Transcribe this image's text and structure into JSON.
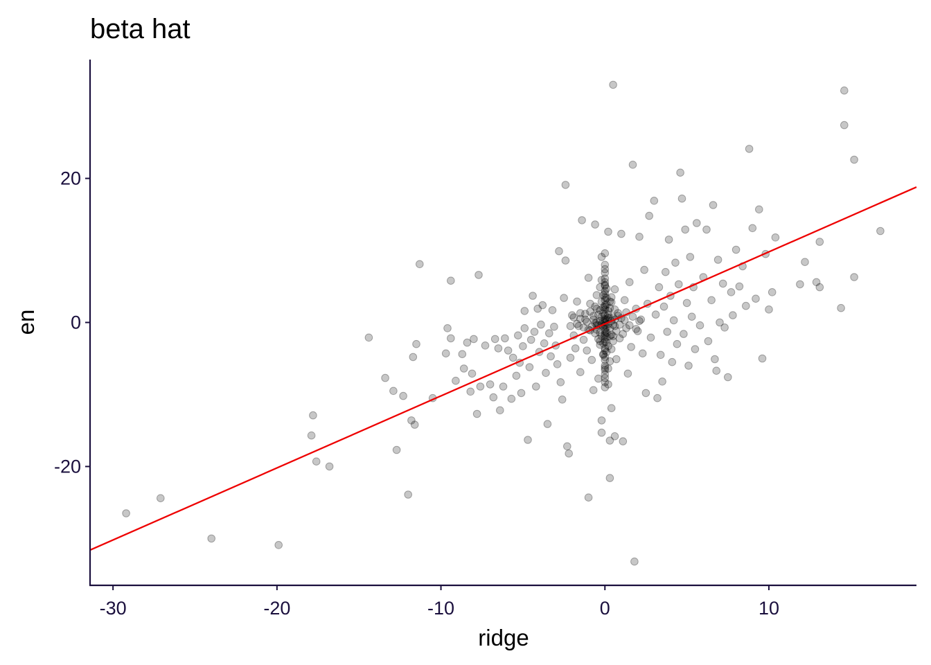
{
  "chart_data": {
    "type": "scatter",
    "title": "beta hat",
    "xlabel": "ridge",
    "ylabel": "en",
    "xlim": [
      -31.4,
      19
    ],
    "ylim": [
      -36.5,
      36.5
    ],
    "x_ticks": [
      -30,
      -20,
      -10,
      0,
      10
    ],
    "x_tick_labels": [
      "-30",
      "-20",
      "-10",
      "0",
      "10"
    ],
    "y_ticks": [
      -20,
      0,
      20
    ],
    "y_tick_labels": [
      "-20",
      "0",
      "20"
    ],
    "grid": false,
    "legend": "none",
    "point_color": "#000000",
    "point_opacity": 0.22,
    "fit_line": {
      "color": "#ee0000",
      "slope": 1.0,
      "intercept": -0.2
    },
    "points": [
      [
        -29.2,
        -26.5
      ],
      [
        -27.1,
        -24.4
      ],
      [
        -24.0,
        -30.0
      ],
      [
        -19.9,
        -30.9
      ],
      [
        -17.9,
        -15.7
      ],
      [
        -17.8,
        -12.9
      ],
      [
        -17.6,
        -19.3
      ],
      [
        -16.8,
        -20.0
      ],
      [
        -14.4,
        -2.1
      ],
      [
        -13.4,
        -7.7
      ],
      [
        -12.9,
        -9.5
      ],
      [
        -12.7,
        -17.7
      ],
      [
        -12.3,
        -10.2
      ],
      [
        -12.0,
        -23.9
      ],
      [
        -11.8,
        -13.6
      ],
      [
        -11.7,
        -4.8
      ],
      [
        -11.6,
        -14.2
      ],
      [
        -11.5,
        -3.0
      ],
      [
        -11.3,
        8.1
      ],
      [
        -10.5,
        -10.5
      ],
      [
        -9.7,
        -4.3
      ],
      [
        -9.6,
        -0.8
      ],
      [
        -9.4,
        5.8
      ],
      [
        -9.4,
        -2.2
      ],
      [
        -9.1,
        -8.1
      ],
      [
        -8.7,
        -4.4
      ],
      [
        -8.6,
        -6.4
      ],
      [
        -8.4,
        -2.8
      ],
      [
        -8.2,
        -9.6
      ],
      [
        -8.1,
        -7.1
      ],
      [
        -8.0,
        -2.3
      ],
      [
        -7.8,
        -12.7
      ],
      [
        -7.7,
        6.6
      ],
      [
        -7.6,
        -8.9
      ],
      [
        -7.3,
        -3.2
      ],
      [
        -7.0,
        -8.6
      ],
      [
        -6.8,
        -10.4
      ],
      [
        -6.7,
        -2.3
      ],
      [
        -6.5,
        -3.6
      ],
      [
        -6.4,
        -12.2
      ],
      [
        -6.2,
        -8.9
      ],
      [
        -6.1,
        -2.2
      ],
      [
        -5.9,
        -3.9
      ],
      [
        -5.7,
        -10.6
      ],
      [
        -5.6,
        -4.9
      ],
      [
        -5.4,
        -7.4
      ],
      [
        -5.3,
        -1.8
      ],
      [
        -5.2,
        -5.6
      ],
      [
        -5.1,
        -9.8
      ],
      [
        -5.0,
        -3.3
      ],
      [
        -4.9,
        -0.8
      ],
      [
        -4.9,
        1.6
      ],
      [
        -4.7,
        -16.3
      ],
      [
        -4.6,
        -6.2
      ],
      [
        -4.5,
        -2.4
      ],
      [
        -4.4,
        3.7
      ],
      [
        -4.3,
        -1.3
      ],
      [
        -4.2,
        -8.9
      ],
      [
        -4.1,
        1.9
      ],
      [
        -4.0,
        -4.1
      ],
      [
        -3.9,
        -0.3
      ],
      [
        -3.8,
        2.4
      ],
      [
        -3.7,
        -2.9
      ],
      [
        -3.6,
        -7.0
      ],
      [
        -3.5,
        -14.1
      ],
      [
        -3.4,
        -1.5
      ],
      [
        -3.3,
        -4.7
      ],
      [
        -3.2,
        1.7
      ],
      [
        -3.1,
        -0.6
      ],
      [
        -3.0,
        -3.2
      ],
      [
        -2.9,
        -5.8
      ],
      [
        -2.8,
        9.9
      ],
      [
        -2.7,
        -8.3
      ],
      [
        -2.6,
        -10.7
      ],
      [
        -2.5,
        3.4
      ],
      [
        -2.4,
        8.6
      ],
      [
        -2.4,
        19.1
      ],
      [
        -2.3,
        -17.2
      ],
      [
        -2.2,
        -18.2
      ],
      [
        -2.1,
        -4.9
      ],
      [
        -2.0,
        1.0
      ],
      [
        -1.9,
        -1.8
      ],
      [
        -1.8,
        -3.6
      ],
      [
        -1.7,
        2.9
      ],
      [
        -1.6,
        -0.5
      ],
      [
        -1.5,
        -6.9
      ],
      [
        -1.5,
        1.3
      ],
      [
        -1.4,
        14.2
      ],
      [
        -1.3,
        -2.4
      ],
      [
        -1.2,
        0.4
      ],
      [
        -1.1,
        -3.9
      ],
      [
        -1.0,
        -24.3
      ],
      [
        -1.0,
        6.2
      ],
      [
        -0.9,
        -1.1
      ],
      [
        -0.9,
        2.6
      ],
      [
        -0.8,
        -5.2
      ],
      [
        -0.7,
        0.9
      ],
      [
        -0.7,
        -9.4
      ],
      [
        -0.6,
        13.6
      ],
      [
        -0.5,
        -0.4
      ],
      [
        -0.5,
        3.8
      ],
      [
        -0.4,
        -7.8
      ],
      [
        -0.3,
        1.7
      ],
      [
        -0.3,
        -2.6
      ],
      [
        -0.2,
        9.1
      ],
      [
        -0.2,
        -13.6
      ],
      [
        -0.2,
        -15.3
      ],
      [
        -0.1,
        0.2
      ],
      [
        -0.1,
        -4.4
      ],
      [
        0.0,
        2.1
      ],
      [
        0.0,
        -1.6
      ],
      [
        0.0,
        5.2
      ],
      [
        0.0,
        -6.3
      ],
      [
        0.1,
        -0.7
      ],
      [
        0.1,
        3.4
      ],
      [
        0.1,
        -2.8
      ],
      [
        0.2,
        1.1
      ],
      [
        0.2,
        -8.6
      ],
      [
        0.2,
        12.6
      ],
      [
        0.3,
        -1.9
      ],
      [
        0.3,
        0.6
      ],
      [
        0.3,
        -16.4
      ],
      [
        0.3,
        -21.6
      ],
      [
        0.4,
        -3.7
      ],
      [
        0.4,
        2.8
      ],
      [
        0.4,
        -11.9
      ],
      [
        0.5,
        33.0
      ],
      [
        0.5,
        -0.3
      ],
      [
        0.6,
        -15.8
      ],
      [
        0.6,
        4.6
      ],
      [
        0.7,
        -5.1
      ],
      [
        0.8,
        1.3
      ],
      [
        0.9,
        -2.2
      ],
      [
        1.0,
        12.3
      ],
      [
        1.1,
        -16.5
      ],
      [
        1.2,
        3.1
      ],
      [
        1.3,
        -0.8
      ],
      [
        1.4,
        -7.1
      ],
      [
        1.5,
        5.6
      ],
      [
        1.6,
        -3.4
      ],
      [
        1.7,
        21.9
      ],
      [
        1.8,
        -33.2
      ],
      [
        1.9,
        1.9
      ],
      [
        2.0,
        -1.2
      ],
      [
        2.1,
        11.9
      ],
      [
        2.2,
        0.4
      ],
      [
        2.3,
        -4.3
      ],
      [
        2.4,
        7.3
      ],
      [
        2.5,
        -9.8
      ],
      [
        2.6,
        2.6
      ],
      [
        2.7,
        14.8
      ],
      [
        2.8,
        -2.1
      ],
      [
        3.0,
        16.9
      ],
      [
        3.1,
        1.1
      ],
      [
        3.2,
        -10.5
      ],
      [
        3.3,
        4.9
      ],
      [
        3.4,
        -4.5
      ],
      [
        3.5,
        -8.2
      ],
      [
        3.6,
        2.2
      ],
      [
        3.7,
        7.0
      ],
      [
        3.8,
        -1.3
      ],
      [
        3.9,
        11.5
      ],
      [
        4.0,
        3.7
      ],
      [
        4.1,
        -5.5
      ],
      [
        4.2,
        0.3
      ],
      [
        4.3,
        8.3
      ],
      [
        4.4,
        -3.0
      ],
      [
        4.5,
        5.3
      ],
      [
        4.6,
        20.8
      ],
      [
        4.7,
        17.2
      ],
      [
        4.8,
        -1.6
      ],
      [
        4.9,
        12.9
      ],
      [
        5.0,
        2.7
      ],
      [
        5.1,
        -6.0
      ],
      [
        5.2,
        9.1
      ],
      [
        5.3,
        0.8
      ],
      [
        5.4,
        4.9
      ],
      [
        5.5,
        -3.7
      ],
      [
        5.6,
        13.8
      ],
      [
        5.8,
        -0.4
      ],
      [
        6.0,
        6.3
      ],
      [
        6.2,
        12.9
      ],
      [
        6.3,
        -2.6
      ],
      [
        6.5,
        3.1
      ],
      [
        6.6,
        16.3
      ],
      [
        6.7,
        -5.1
      ],
      [
        6.8,
        -6.7
      ],
      [
        6.9,
        8.7
      ],
      [
        7.0,
        0.0
      ],
      [
        7.2,
        5.4
      ],
      [
        7.3,
        -0.7
      ],
      [
        7.5,
        -7.6
      ],
      [
        7.7,
        4.2
      ],
      [
        7.8,
        1.0
      ],
      [
        8.0,
        10.1
      ],
      [
        8.2,
        5.0
      ],
      [
        8.4,
        7.8
      ],
      [
        8.6,
        2.3
      ],
      [
        8.8,
        24.1
      ],
      [
        9.0,
        13.1
      ],
      [
        9.2,
        3.3
      ],
      [
        9.4,
        15.7
      ],
      [
        9.6,
        -5.0
      ],
      [
        9.8,
        9.5
      ],
      [
        10.0,
        1.8
      ],
      [
        10.2,
        4.2
      ],
      [
        10.4,
        11.8
      ],
      [
        11.9,
        5.3
      ],
      [
        12.2,
        8.4
      ],
      [
        12.9,
        5.6
      ],
      [
        13.1,
        4.9
      ],
      [
        13.1,
        11.2
      ],
      [
        14.4,
        2.0
      ],
      [
        14.6,
        32.2
      ],
      [
        14.6,
        27.4
      ],
      [
        15.2,
        22.6
      ],
      [
        15.2,
        6.3
      ],
      [
        16.8,
        12.7
      ]
    ],
    "dense_center_points": [
      [
        0.0,
        0.5
      ],
      [
        0.0,
        -0.9
      ],
      [
        0.0,
        1.8
      ],
      [
        0.0,
        -2.3
      ],
      [
        0.0,
        3.1
      ],
      [
        0.0,
        -3.6
      ],
      [
        0.0,
        4.4
      ],
      [
        0.0,
        -4.8
      ],
      [
        0.0,
        5.6
      ],
      [
        0.0,
        -6.0
      ],
      [
        0.0,
        6.9
      ],
      [
        0.0,
        -7.2
      ],
      [
        0.0,
        -8.3
      ],
      [
        0.0,
        8.0
      ],
      [
        -0.1,
        1.3
      ],
      [
        0.1,
        -1.4
      ],
      [
        -0.1,
        -2.9
      ],
      [
        0.1,
        2.5
      ],
      [
        -0.1,
        3.8
      ],
      [
        0.1,
        -4.1
      ],
      [
        -0.2,
        0.8
      ],
      [
        0.2,
        -0.2
      ],
      [
        -0.2,
        -1.9
      ],
      [
        0.2,
        1.6
      ],
      [
        -0.2,
        2.9
      ],
      [
        0.2,
        -3.3
      ],
      [
        -0.3,
        0.2
      ],
      [
        0.3,
        -0.8
      ],
      [
        -0.3,
        -1.4
      ],
      [
        0.3,
        2.0
      ],
      [
        -0.3,
        4.9
      ],
      [
        0.3,
        -5.4
      ],
      [
        -0.4,
        1.1
      ],
      [
        0.4,
        -1.7
      ],
      [
        -0.4,
        -2.3
      ],
      [
        0.4,
        3.5
      ],
      [
        -0.5,
        0.0
      ],
      [
        0.5,
        0.7
      ],
      [
        -0.5,
        -1.0
      ],
      [
        0.5,
        -2.6
      ],
      [
        -0.6,
        2.2
      ],
      [
        0.6,
        1.8
      ],
      [
        -0.6,
        -1.5
      ],
      [
        0.6,
        -0.5
      ],
      [
        -0.7,
        0.4
      ],
      [
        0.7,
        -1.2
      ],
      [
        -0.8,
        -0.6
      ],
      [
        0.8,
        0.9
      ],
      [
        -0.9,
        1.5
      ],
      [
        0.9,
        -0.3
      ],
      [
        -1.0,
        -1.0
      ],
      [
        1.0,
        0.6
      ],
      [
        -1.1,
        0.1
      ],
      [
        1.1,
        -1.6
      ],
      [
        -1.2,
        1.2
      ],
      [
        1.2,
        0.3
      ],
      [
        -1.3,
        -0.7
      ],
      [
        1.3,
        1.4
      ],
      [
        -1.5,
        0.5
      ],
      [
        1.5,
        -0.4
      ],
      [
        -1.7,
        -0.2
      ],
      [
        1.7,
        0.8
      ],
      [
        -1.9,
        0.7
      ],
      [
        1.9,
        -0.9
      ],
      [
        -2.1,
        -0.5
      ],
      [
        2.1,
        0.2
      ],
      [
        0.0,
        0.0
      ],
      [
        0.0,
        -0.4
      ],
      [
        0.0,
        0.3
      ],
      [
        0.0,
        -1.2
      ],
      [
        0.0,
        1.0
      ],
      [
        0.0,
        -1.8
      ],
      [
        0.0,
        2.4
      ],
      [
        0.0,
        -2.7
      ],
      [
        0.0,
        3.5
      ],
      [
        0.0,
        -3.9
      ],
      [
        0.0,
        4.0
      ],
      [
        0.0,
        -5.2
      ],
      [
        0.0,
        5.1
      ],
      [
        0.0,
        -6.6
      ],
      [
        0.0,
        6.1
      ],
      [
        0.0,
        -7.7
      ],
      [
        0.0,
        7.4
      ],
      [
        0.0,
        -9.0
      ],
      [
        0.0,
        9.6
      ],
      [
        -0.1,
        -0.5
      ],
      [
        0.1,
        0.4
      ],
      [
        -0.1,
        2.1
      ],
      [
        0.1,
        -2.0
      ],
      [
        -0.1,
        -4.5
      ],
      [
        0.1,
        4.7
      ],
      [
        -0.2,
        -0.3
      ],
      [
        0.2,
        0.6
      ],
      [
        -0.2,
        5.9
      ],
      [
        0.2,
        -6.4
      ],
      [
        -0.3,
        -3.1
      ],
      [
        0.3,
        2.9
      ],
      [
        -0.4,
        -0.4
      ],
      [
        0.4,
        0.2
      ],
      [
        -0.5,
        1.9
      ],
      [
        0.5,
        -1.9
      ],
      [
        -0.6,
        -0.1
      ],
      [
        0.6,
        0.4
      ]
    ]
  }
}
